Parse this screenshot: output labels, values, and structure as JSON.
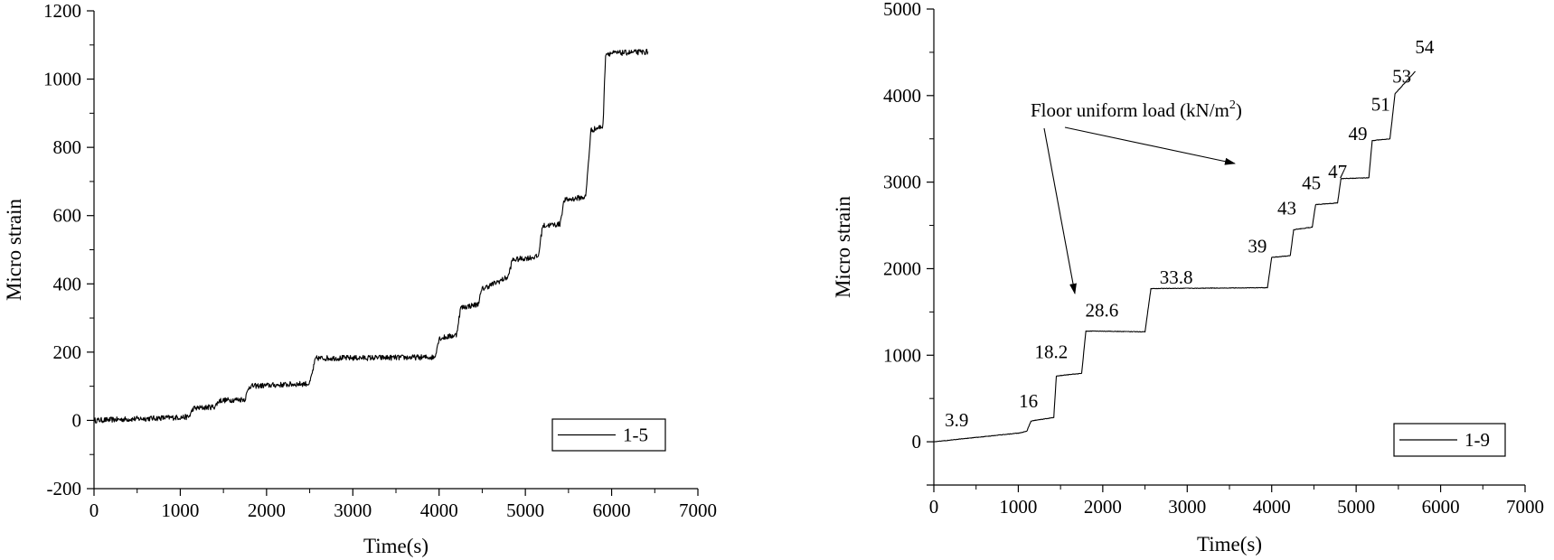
{
  "chart_data": [
    {
      "type": "line",
      "xlabel": "Time(s)",
      "ylabel": "Micro strain",
      "xlim": [
        0,
        7000
      ],
      "ylim": [
        -200,
        1200
      ],
      "xticks": [
        "0",
        "1000",
        "2000",
        "3000",
        "4000",
        "5000",
        "6000",
        "7000"
      ],
      "yticks": [
        "-200",
        "0",
        "200",
        "400",
        "600",
        "800",
        "1000",
        "1200"
      ],
      "grid": false,
      "legend_position": "bottom-right",
      "series": [
        {
          "name": "1-5",
          "color": "#000000",
          "noise": 8,
          "x": [
            0,
            1100,
            1150,
            1400,
            1450,
            1750,
            1800,
            2500,
            2570,
            3950,
            4000,
            4200,
            4250,
            4450,
            4500,
            4800,
            4850,
            5150,
            5200,
            5400,
            5450,
            5700,
            5760,
            5900,
            5930,
            6420
          ],
          "y": [
            0,
            10,
            35,
            40,
            58,
            62,
            100,
            108,
            182,
            185,
            240,
            250,
            330,
            340,
            385,
            420,
            470,
            480,
            570,
            575,
            645,
            655,
            850,
            862,
            1075,
            1080
          ]
        }
      ],
      "annotations": []
    },
    {
      "type": "line",
      "xlabel": "Time(s)",
      "ylabel": "Micro strain",
      "xlim": [
        0,
        7000
      ],
      "ylim": [
        -500,
        5000
      ],
      "xticks": [
        "0",
        "1000",
        "2000",
        "3000",
        "4000",
        "5000",
        "6000",
        "7000"
      ],
      "yticks": [
        "0",
        "1000",
        "2000",
        "3000",
        "4000",
        "5000"
      ],
      "grid": false,
      "legend_position": "bottom-right",
      "series": [
        {
          "name": "1-9",
          "color": "#000000",
          "noise": 3,
          "x": [
            0,
            1000,
            1100,
            1150,
            1420,
            1450,
            1750,
            1800,
            2500,
            2570,
            3950,
            4000,
            4220,
            4260,
            4480,
            4520,
            4780,
            4820,
            5150,
            5190,
            5400,
            5460,
            5700
          ],
          "y": [
            0,
            100,
            120,
            240,
            280,
            760,
            790,
            1280,
            1270,
            1770,
            1780,
            2130,
            2150,
            2450,
            2480,
            2740,
            2760,
            3040,
            3050,
            3480,
            3500,
            4020,
            4280
          ]
        }
      ],
      "annotations": {
        "title": "Floor uniform load (kN/m",
        "title_sup": "2",
        "title_close": ")",
        "labels": [
          {
            "text": "3.9",
            "x": 270,
            "y": 250
          },
          {
            "text": "16",
            "x": 1120,
            "y": 470
          },
          {
            "text": "18.2",
            "x": 1390,
            "y": 1040
          },
          {
            "text": "28.6",
            "x": 1990,
            "y": 1520
          },
          {
            "text": "33.8",
            "x": 2870,
            "y": 1900
          },
          {
            "text": "39",
            "x": 3830,
            "y": 2260
          },
          {
            "text": "43",
            "x": 4180,
            "y": 2700
          },
          {
            "text": "45",
            "x": 4470,
            "y": 2990
          },
          {
            "text": "47",
            "x": 4780,
            "y": 3120
          },
          {
            "text": "49",
            "x": 5020,
            "y": 3560
          },
          {
            "text": "51",
            "x": 5290,
            "y": 3900
          },
          {
            "text": "53",
            "x": 5540,
            "y": 4220
          },
          {
            "text": "54",
            "x": 5810,
            "y": 4560
          }
        ]
      }
    }
  ]
}
